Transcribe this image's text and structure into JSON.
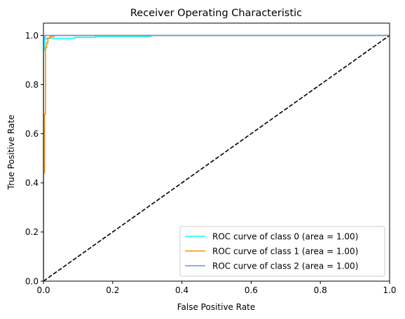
{
  "chart_data": {
    "type": "line",
    "title": "Receiver Operating Characteristic",
    "xlabel": "False Positive Rate",
    "ylabel": "True Positive Rate",
    "xlim": [
      0.0,
      1.0
    ],
    "ylim": [
      0.0,
      1.05
    ],
    "xticks": [
      "0.0",
      "0.2",
      "0.4",
      "0.6",
      "0.8",
      "1.0"
    ],
    "yticks": [
      "0.0",
      "0.2",
      "0.4",
      "0.6",
      "0.8",
      "1.0"
    ],
    "grid": false,
    "legend_position": "lower right",
    "series": [
      {
        "name": "ROC curve of class 0 (area = 1.00)",
        "color": "#00ffff",
        "x": [
          0.0,
          0.0,
          0.004,
          0.004,
          0.01,
          0.01,
          0.09,
          0.09,
          0.15,
          0.15,
          0.31,
          0.31,
          1.0
        ],
        "y": [
          0.0,
          0.94,
          0.94,
          0.985,
          0.985,
          0.988,
          0.988,
          0.992,
          0.992,
          0.996,
          0.996,
          1.0,
          1.0
        ]
      },
      {
        "name": "ROC curve of class 1 (area = 1.00)",
        "color": "#ff8c00",
        "x": [
          0.0,
          0.0,
          0.003,
          0.003,
          0.006,
          0.006,
          0.009,
          0.009,
          0.013,
          0.013,
          0.02,
          0.02,
          0.03,
          0.03,
          0.08,
          0.08,
          1.0
        ],
        "y": [
          0.0,
          0.44,
          0.44,
          0.68,
          0.68,
          0.95,
          0.95,
          0.97,
          0.97,
          0.99,
          0.99,
          0.995,
          0.995,
          1.0,
          1.0,
          1.0,
          1.0
        ]
      },
      {
        "name": "ROC curve of class 2 (area = 1.00)",
        "color": "#6495ed",
        "x": [
          0.0,
          0.0,
          0.004,
          0.004,
          1.0
        ],
        "y": [
          0.0,
          0.99,
          0.99,
          1.0,
          1.0
        ]
      }
    ],
    "reference_line": {
      "x": [
        0.0,
        1.0
      ],
      "y": [
        0.0,
        1.0
      ],
      "color": "#000000",
      "style": "dashed"
    }
  }
}
